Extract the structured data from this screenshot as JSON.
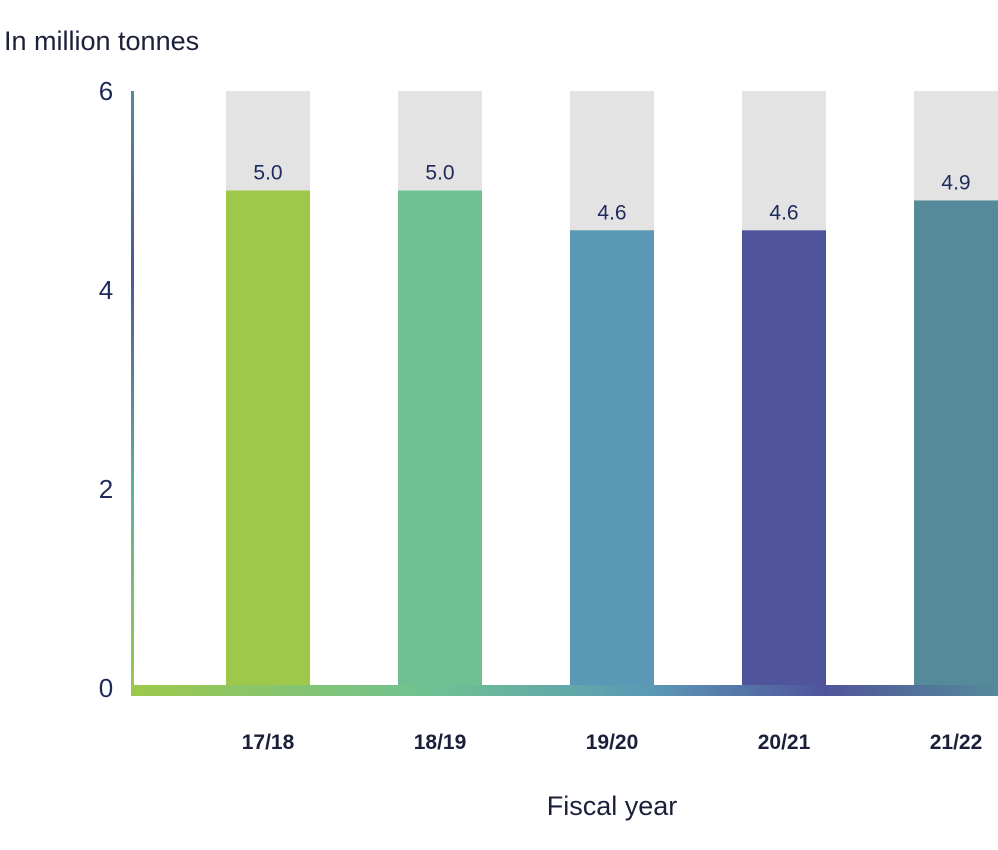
{
  "chart_data": {
    "type": "bar",
    "ylabel": "In million tonnes",
    "xlabel": "Fiscal year",
    "categories": [
      "17/18",
      "18/19",
      "19/20",
      "20/21",
      "21/22"
    ],
    "values": [
      5.0,
      5.0,
      4.6,
      4.6,
      4.9
    ],
    "value_labels": [
      "5.0",
      "5.0",
      "4.6",
      "4.6",
      "4.9"
    ],
    "ylim": [
      0,
      6
    ],
    "yticks": [
      0,
      2,
      4,
      6
    ],
    "ytick_labels": [
      "0",
      "2",
      "4",
      "6"
    ],
    "grid": false,
    "legend": "none",
    "colors": {
      "bars": [
        "#9dc84a",
        "#6fc194",
        "#5b98b5",
        "#50559b",
        "#548a99"
      ],
      "background_column": "#e3e3e3",
      "axis_gradient": [
        "#9dc84a",
        "#6fc194",
        "#5b98b5",
        "#50559b",
        "#548a99"
      ]
    }
  }
}
